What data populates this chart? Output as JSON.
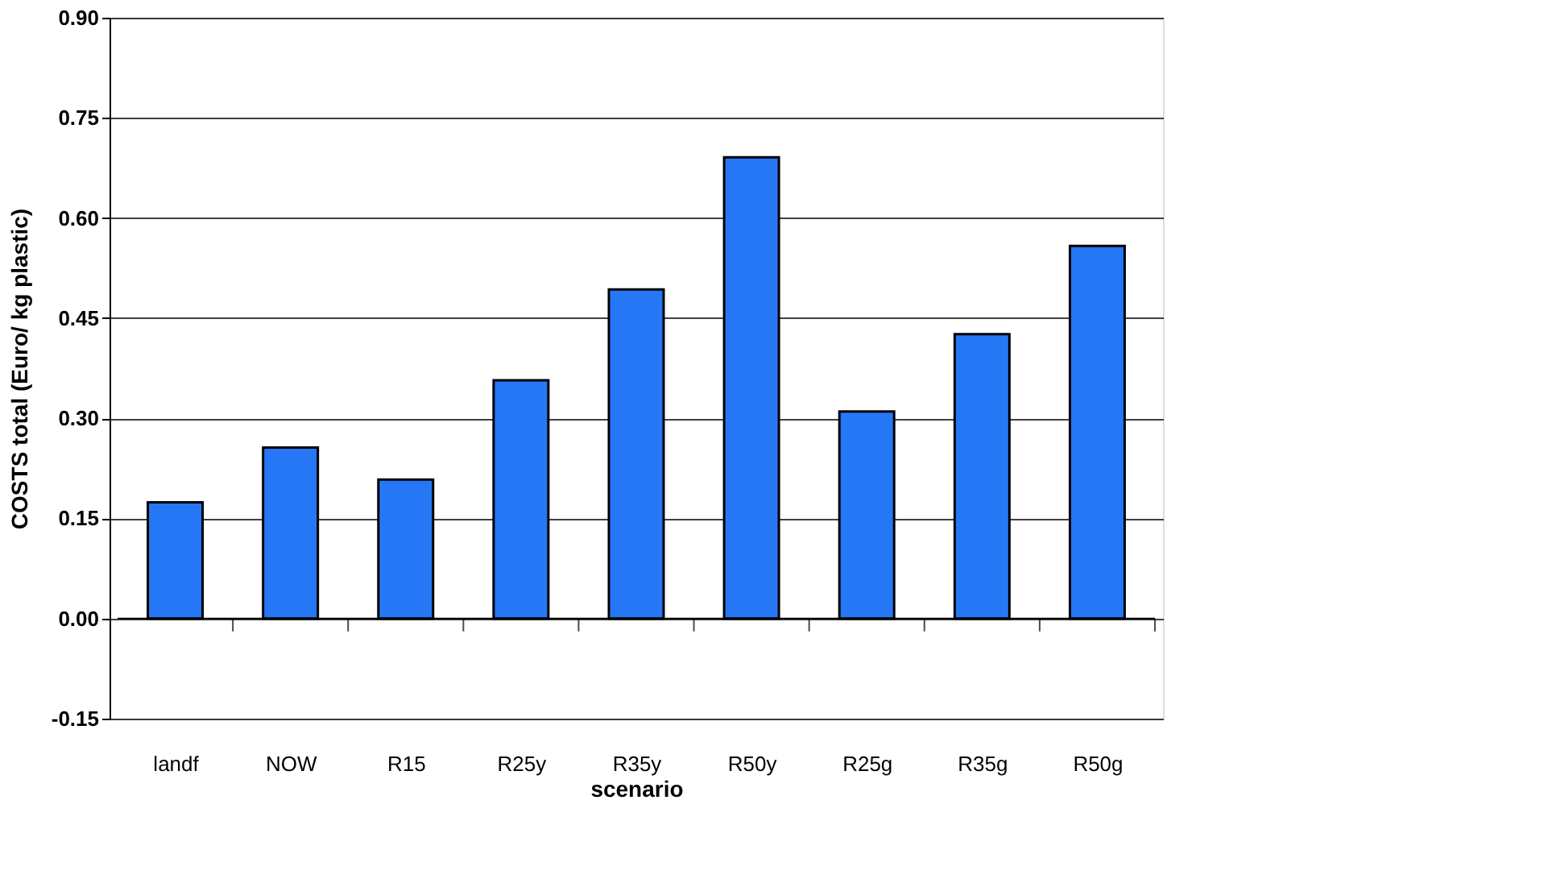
{
  "chart_data": {
    "type": "bar",
    "xlabel": "scenario",
    "ylabel": "COSTS total  (Euro/ kg plastic)",
    "categories": [
      "landf",
      "NOW",
      "R15",
      "R25y",
      "R35y",
      "R50y",
      "R25g",
      "R35g",
      "R50g"
    ],
    "values": [
      0.174,
      0.256,
      0.208,
      0.357,
      0.493,
      0.691,
      0.31,
      0.426,
      0.558
    ],
    "color": "#2577f5",
    "ylim": [
      -0.15,
      0.9
    ],
    "yticks": [
      {
        "value": -0.15,
        "label": "-0.15"
      },
      {
        "value": 0,
        "label": "0.00"
      },
      {
        "value": 0.15,
        "label": "0.15"
      },
      {
        "value": 0.3,
        "label": "0.30"
      },
      {
        "value": 0.45,
        "label": "0.45"
      },
      {
        "value": 0.6,
        "label": "0.60"
      },
      {
        "value": 0.75,
        "label": "0.75"
      },
      {
        "value": 0.9,
        "label": "0.90"
      }
    ],
    "grid": "y"
  }
}
